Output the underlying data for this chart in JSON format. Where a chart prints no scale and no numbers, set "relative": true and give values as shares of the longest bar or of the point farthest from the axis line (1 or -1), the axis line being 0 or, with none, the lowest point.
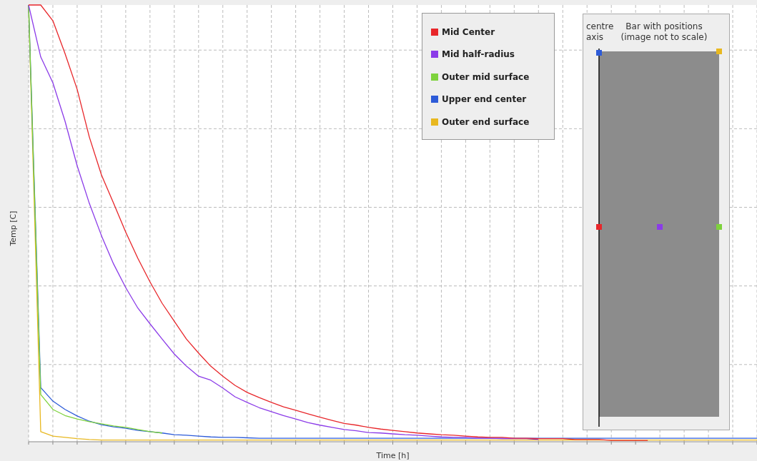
{
  "chart_data": {
    "type": "line",
    "relative": true,
    "xlabel": "Time [h]",
    "ylabel": "Temp [C]",
    "grid": true,
    "legend": "top right",
    "marker": "none",
    "line_style": "solid",
    "annotations": [
      "centre axis",
      "Bar with positions (image not to scale)"
    ],
    "categories": [
      null,
      null,
      null,
      null,
      null,
      null,
      null,
      null,
      null,
      null,
      null,
      null,
      null,
      null,
      null,
      null,
      null,
      null,
      null,
      null,
      null,
      null,
      null,
      null,
      null,
      null,
      null,
      null,
      null,
      null,
      null,
      null,
      null,
      null,
      null,
      null,
      null,
      null,
      null,
      null,
      null,
      null,
      null,
      null,
      null,
      null,
      null,
      null,
      null,
      null,
      null,
      null,
      null,
      null,
      null,
      null,
      null,
      null,
      null,
      null,
      null
    ],
    "series": [
      {
        "name": "Mid Center",
        "color": "#e8262a",
        "values": [
          1,
          1,
          0.964,
          0.889,
          0.807,
          0.698,
          0.611,
          0.546,
          0.48,
          0.42,
          0.366,
          0.317,
          0.276,
          0.235,
          0.203,
          0.173,
          0.15,
          0.129,
          0.113,
          0.101,
          0.09,
          0.08,
          0.072,
          0.064,
          0.056,
          0.049,
          0.042,
          0.038,
          0.033,
          0.029,
          0.026,
          0.023,
          0.02,
          0.018,
          0.016,
          0.015,
          0.013,
          0.011,
          0.01,
          0.01,
          0.008,
          0.008,
          0.007,
          0.007,
          0.007,
          0.005,
          0.005,
          0.005,
          0.003,
          0.003,
          0.003,
          0.003,
          null,
          null,
          null,
          null,
          null,
          null,
          null,
          null,
          null
        ]
      },
      {
        "name": "Mid half-radius",
        "color": "#8b3be8",
        "values": [
          1,
          0.881,
          0.822,
          0.734,
          0.632,
          0.546,
          0.472,
          0.407,
          0.353,
          0.306,
          0.27,
          0.235,
          0.201,
          0.173,
          0.15,
          0.141,
          0.123,
          0.103,
          0.09,
          0.078,
          0.069,
          0.06,
          0.052,
          0.044,
          0.038,
          0.033,
          0.028,
          0.025,
          0.021,
          0.02,
          0.018,
          0.016,
          0.015,
          0.013,
          0.011,
          0.01,
          0.01,
          0.008,
          0.008,
          0.007,
          0.007,
          0.007,
          0.005,
          null,
          null,
          null,
          null,
          null,
          null,
          null,
          null,
          null,
          null,
          null,
          null,
          null,
          null,
          null,
          null,
          null,
          null
        ]
      },
      {
        "name": "Outer mid surface",
        "color": "#7ed23c",
        "values": [
          1,
          0.108,
          0.074,
          0.06,
          0.052,
          0.046,
          0.041,
          0.036,
          0.033,
          0.028,
          0.023,
          0.02,
          null,
          null,
          null,
          null,
          null,
          null,
          null,
          null,
          null,
          null,
          null,
          null,
          null,
          null,
          null,
          null,
          null,
          null,
          null,
          null,
          null,
          null,
          null,
          null,
          null,
          null,
          null,
          null,
          null,
          null,
          null,
          null,
          null,
          null,
          null,
          null,
          null,
          null,
          null,
          null,
          null,
          null,
          null,
          null,
          null,
          null,
          null,
          null,
          null
        ]
      },
      {
        "name": "Upper end center",
        "color": "#2d5bd8",
        "values": [
          1,
          0.124,
          0.093,
          0.074,
          0.059,
          0.047,
          0.039,
          0.034,
          0.031,
          0.026,
          0.023,
          0.02,
          0.016,
          0.015,
          0.013,
          0.011,
          0.01,
          0.01,
          0.009,
          0.008,
          0.008,
          0.008,
          0.008,
          0.008,
          0.008,
          0.008,
          0.008,
          0.008,
          0.008,
          0.008,
          0.008,
          0.008,
          0.008,
          0.008,
          0.008,
          0.008,
          0.008,
          0.008,
          0.008,
          0.008,
          0.008,
          0.008,
          0.008,
          0.008,
          0.008,
          0.008,
          0.008,
          0.008,
          0.008,
          0.008,
          0.008,
          0.008,
          0.008,
          0.008,
          0.008,
          0.008,
          0.008,
          0.008,
          0.008,
          0.008,
          0.008
        ]
      },
      {
        "name": "Outer end surface",
        "color": "#e8b820",
        "values": [
          1,
          0.023,
          0.013,
          0.01,
          0.007,
          0.005,
          0.004,
          0.004,
          0.004,
          0.004,
          0.004,
          0.004,
          0.004,
          0.004,
          0.004,
          0.004,
          0.004,
          0.004,
          0.004,
          0.004,
          0.004,
          0.004,
          0.004,
          0.004,
          0.004,
          0.004,
          0.004,
          0.004,
          0.004,
          0.004,
          0.004,
          0.004,
          0.004,
          0.004,
          0.004,
          0.004,
          0.004,
          0.004,
          0.004,
          0.004,
          0.004,
          0.004,
          0.004,
          0.004,
          0.004,
          0.004,
          0.004,
          0.004,
          0.004,
          0.004,
          0.004,
          0.004,
          0.004,
          0.004,
          0.004,
          0.004,
          0.004,
          0.004,
          0.004,
          0.004,
          0.004
        ]
      }
    ]
  }
}
